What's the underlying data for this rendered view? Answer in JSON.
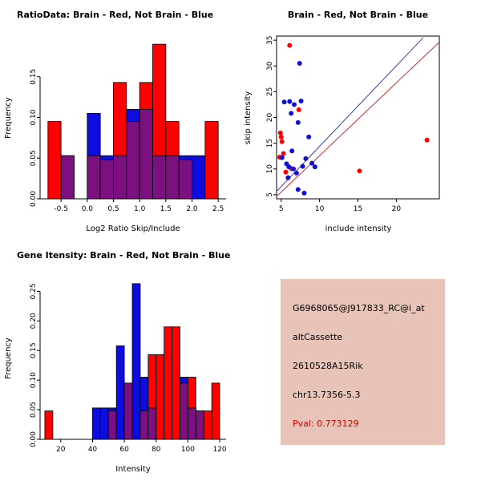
{
  "colors": {
    "red": "#ff0000",
    "blue": "#0d0de0",
    "overlap": "#7d1080",
    "line_red": "#d42a2a",
    "line_blue": "#3d3dae",
    "axis": "#000000"
  },
  "chart_data": [
    {
      "id": "ratio_hist",
      "type": "bar",
      "title": "RatioData: Brain - Red, Not Brain - Blue",
      "xlabel": "Log2 Ratio Skip/Include",
      "ylabel": "Frequency",
      "legend": "Brain = red bars, Not Brain = blue bars, overlap = purple",
      "xlim": [
        -0.9,
        2.65
      ],
      "ylim": [
        0,
        0.2
      ],
      "xticks": [
        "-0.5",
        "0.0",
        "0.5",
        "1.0",
        "1.5",
        "2.0",
        "2.5"
      ],
      "xtick_vals": [
        -0.5,
        0.0,
        0.5,
        1.0,
        1.5,
        2.0,
        2.5
      ],
      "yticks": [
        "0.00",
        "0.05",
        "0.10",
        "0.15"
      ],
      "ytick_vals": [
        0,
        0.05,
        0.1,
        0.15
      ],
      "bin_width": 0.25,
      "bins": [
        {
          "x": -0.75,
          "red": 0.095,
          "blue": 0
        },
        {
          "x": -0.5,
          "red": 0.053,
          "blue": 0.053
        },
        {
          "x": 0.0,
          "red": 0.053,
          "blue": 0.105
        },
        {
          "x": 0.25,
          "red": 0.048,
          "blue": 0.053
        },
        {
          "x": 0.5,
          "red": 0.143,
          "blue": 0.053
        },
        {
          "x": 0.75,
          "red": 0.095,
          "blue": 0.11
        },
        {
          "x": 1.0,
          "red": 0.143,
          "blue": 0.11
        },
        {
          "x": 1.25,
          "red": 0.19,
          "blue": 0.053
        },
        {
          "x": 1.5,
          "red": 0.095,
          "blue": 0.053
        },
        {
          "x": 1.75,
          "red": 0.048,
          "blue": 0.053
        },
        {
          "x": 2.0,
          "red": 0,
          "blue": 0.053
        },
        {
          "x": 2.25,
          "red": 0.095,
          "blue": 0
        }
      ]
    },
    {
      "id": "scatter",
      "type": "scatter",
      "title": "Brain - Red, Not Brain - Blue",
      "xlabel": "include intensity",
      "ylabel": "skip intensity",
      "xlim": [
        4.4,
        25.6
      ],
      "ylim": [
        4.2,
        35.8
      ],
      "xticks": [
        "5",
        "10",
        "15",
        "20"
      ],
      "xtick_vals": [
        5,
        10,
        15,
        20
      ],
      "yticks": [
        "5",
        "10",
        "15",
        "20",
        "25",
        "30",
        "35"
      ],
      "ytick_vals": [
        5,
        10,
        15,
        20,
        25,
        30,
        35
      ],
      "series": [
        {
          "name": "Brain",
          "color": "red",
          "points": [
            [
              4.9,
              17
            ],
            [
              5.0,
              16.2
            ],
            [
              5.1,
              15.3
            ],
            [
              5.3,
              13
            ],
            [
              6.1,
              34
            ],
            [
              5.6,
              9.4
            ],
            [
              6.3,
              10.1
            ],
            [
              4.8,
              12.3
            ],
            [
              7.3,
              21.5
            ],
            [
              15.2,
              9.6
            ],
            [
              24,
              15.6
            ]
          ]
        },
        {
          "name": "Not Brain",
          "color": "blue",
          "points": [
            [
              5.4,
              23
            ],
            [
              6.1,
              23.1
            ],
            [
              6.7,
              22.5
            ],
            [
              7.6,
              23.2
            ],
            [
              6.3,
              20.8
            ],
            [
              7.2,
              19
            ],
            [
              7.4,
              30.5
            ],
            [
              8.6,
              16.2
            ],
            [
              6.4,
              13.5
            ],
            [
              5.1,
              12.2
            ],
            [
              5.7,
              11
            ],
            [
              6.0,
              10.4
            ],
            [
              6.6,
              10
            ],
            [
              7.0,
              9.2
            ],
            [
              7.8,
              10.5
            ],
            [
              8.2,
              12
            ],
            [
              9.0,
              11.1
            ],
            [
              9.4,
              10.4
            ],
            [
              5.9,
              8.3
            ],
            [
              7.2,
              6.0
            ],
            [
              8.0,
              5.3
            ]
          ]
        }
      ],
      "fit_lines": [
        {
          "color": "blue",
          "x1": 4.5,
          "y1": 5.8,
          "x2": 23.5,
          "y2": 35.5
        },
        {
          "color": "red",
          "x1": 4.5,
          "y1": 4.8,
          "x2": 25.5,
          "y2": 34.5
        }
      ]
    },
    {
      "id": "gene_hist",
      "type": "bar",
      "title": "Gene Itensity: Brain - Red, Not Brain - Blue",
      "xlabel": "Intensity",
      "ylabel": "Frequency",
      "legend": "Brain = red bars, Not Brain = blue bars, overlap = purple",
      "xlim": [
        7,
        124
      ],
      "ylim": [
        0,
        0.275
      ],
      "xticks": [
        "20",
        "40",
        "60",
        "80",
        "100",
        "120"
      ],
      "xtick_vals": [
        20,
        40,
        60,
        80,
        100,
        120
      ],
      "yticks": [
        "0.00",
        "0.05",
        "0.10",
        "0.15",
        "0.20",
        "0.25"
      ],
      "ytick_vals": [
        0,
        0.05,
        0.1,
        0.15,
        0.2,
        0.25
      ],
      "bin_width": 5,
      "bins": [
        {
          "x": 10,
          "red": 0.048,
          "blue": 0
        },
        {
          "x": 40,
          "red": 0,
          "blue": 0.053
        },
        {
          "x": 45,
          "red": 0,
          "blue": 0.053
        },
        {
          "x": 50,
          "red": 0.048,
          "blue": 0.053
        },
        {
          "x": 55,
          "red": 0,
          "blue": 0.158
        },
        {
          "x": 60,
          "red": 0.095,
          "blue": 0.095
        },
        {
          "x": 65,
          "red": 0,
          "blue": 0.263
        },
        {
          "x": 70,
          "red": 0.048,
          "blue": 0.105
        },
        {
          "x": 75,
          "red": 0.143,
          "blue": 0.053
        },
        {
          "x": 80,
          "red": 0.143,
          "blue": 0
        },
        {
          "x": 85,
          "red": 0.19,
          "blue": 0
        },
        {
          "x": 90,
          "red": 0.19,
          "blue": 0
        },
        {
          "x": 95,
          "red": 0.095,
          "blue": 0.105
        },
        {
          "x": 100,
          "red": 0.105,
          "blue": 0.053
        },
        {
          "x": 105,
          "red": 0.048,
          "blue": 0.048
        },
        {
          "x": 110,
          "red": 0.048,
          "blue": 0
        },
        {
          "x": 115,
          "red": 0.095,
          "blue": 0
        }
      ]
    }
  ],
  "info_panel": {
    "bg": "#e8c4b8",
    "lines": [
      {
        "text": "G6968065@J917833_RC@i_at",
        "color": "#000000"
      },
      {
        "text": "altCassette",
        "color": "#000000"
      },
      {
        "text": "2610528A15Rik",
        "color": "#000000"
      },
      {
        "text": "chr13.7356-5.3",
        "color": "#000000"
      },
      {
        "text": "Pval: 0.773129",
        "color": "#cc0000"
      }
    ]
  }
}
